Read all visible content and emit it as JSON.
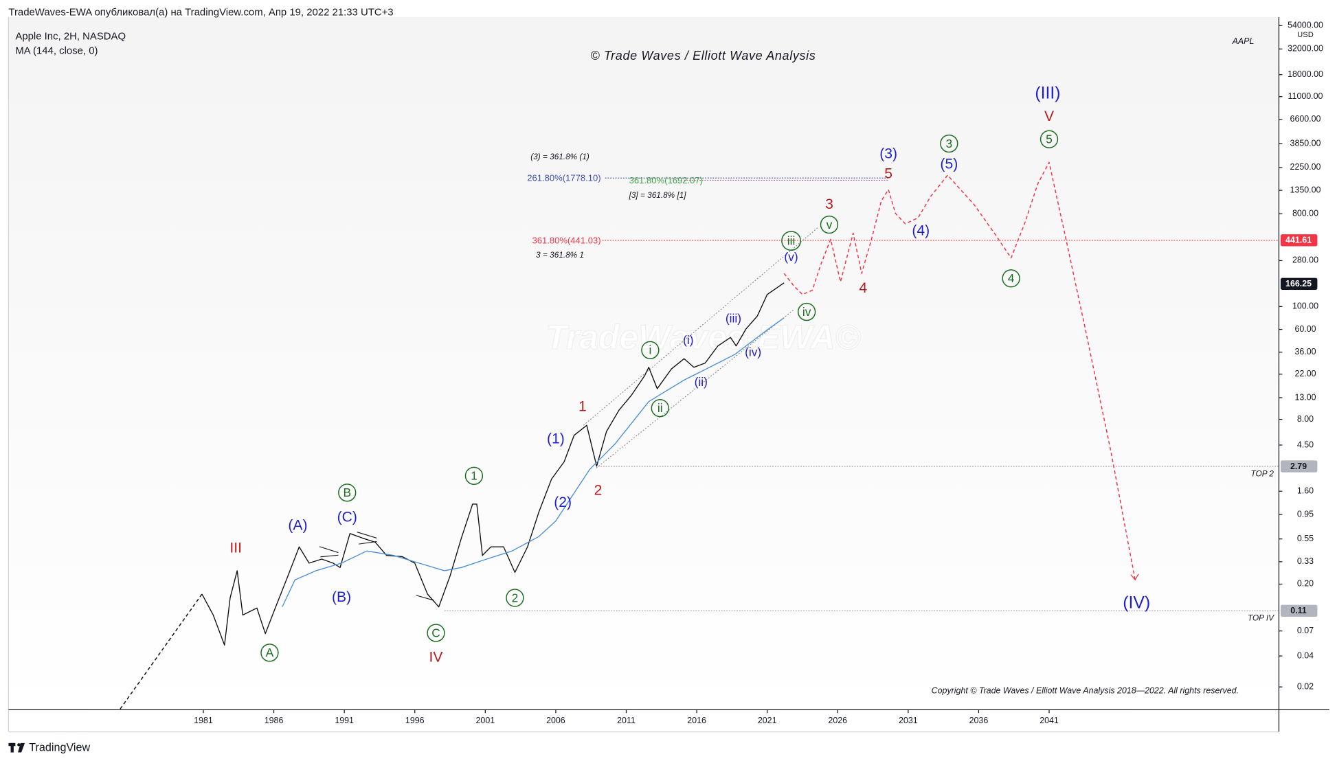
{
  "header": {
    "publisher": "TradeWaves-EWA опубликовал(а) на TradingView.com, Апр 19, 2022 21:33 UTC+3"
  },
  "footer": {
    "brand": "TradingView"
  },
  "chart_data": {
    "type": "line",
    "title": "© Trade Waves / Elliott Wave Analysis",
    "symbol": "AAPL",
    "currency": "USD",
    "watermark": "TradeWaves-EWA©",
    "copyright": "Copyright © Trade Waves / Elliott Wave Analysis 2018—2022. All rights reserved.",
    "log_scale": true,
    "grid": false,
    "legend": "top-left",
    "xlim": [
      1967.18,
      2057.3
    ],
    "xticks": [
      1981,
      1986,
      1991,
      1996,
      2001,
      2006,
      2011,
      2016,
      2021,
      2026,
      2031,
      2036,
      2041
    ],
    "ylim": [
      0.012,
      65330
    ],
    "yticks": [
      {
        "value": 54000,
        "label": "54000.00"
      },
      {
        "value": 32000,
        "label": "32000.00"
      },
      {
        "value": 18000,
        "label": "18000.00"
      },
      {
        "value": 11000,
        "label": "11000.00"
      },
      {
        "value": 6600,
        "label": "6600.00"
      },
      {
        "value": 3850,
        "label": "3850.00"
      },
      {
        "value": 2250,
        "label": "2250.00"
      },
      {
        "value": 1350,
        "label": "1350.00"
      },
      {
        "value": 800,
        "label": "800.00"
      },
      {
        "value": 280,
        "label": "280.00"
      },
      {
        "value": 100,
        "label": "100.00"
      },
      {
        "value": 60,
        "label": "60.00"
      },
      {
        "value": 36,
        "label": "36.00"
      },
      {
        "value": 22,
        "label": "22.00"
      },
      {
        "value": 13,
        "label": "13.00"
      },
      {
        "value": 8,
        "label": "8.00"
      },
      {
        "value": 4.5,
        "label": "4.50"
      },
      {
        "value": 1.6,
        "label": "1.60"
      },
      {
        "value": 0.95,
        "label": "0.95"
      },
      {
        "value": 0.55,
        "label": "0.55"
      },
      {
        "value": 0.33,
        "label": "0.33"
      },
      {
        "value": 0.2,
        "label": "0.20"
      },
      {
        "value": 0.07,
        "label": "0.07"
      },
      {
        "value": 0.04,
        "label": "0.04"
      },
      {
        "value": 0.02,
        "label": "0.02"
      }
    ],
    "series": [
      {
        "name": "Apple Inc, 2H, NASDAQ",
        "color": "#111111",
        "dash": false,
        "x": [
          1980.9,
          1981.7,
          1982.5,
          1982.9,
          1983.4,
          1983.8,
          1984.8,
          1985.4,
          1986.1,
          1987.0,
          1987.8,
          1988.5,
          1989.4,
          1990.2,
          1990.7,
          1991.4,
          1992.3,
          1993.2,
          1994.0,
          1995.1,
          1996.0,
          1996.9,
          1997.7,
          1998.5,
          1999.3,
          2000.1,
          2000.4,
          2000.8,
          2001.4,
          2002.3,
          2003.1,
          2004.0,
          2004.8,
          2005.7,
          2006.6,
          2007.3,
          2008.2,
          2008.9,
          2009.6,
          2010.5,
          2011.4,
          2012.3,
          2012.6,
          2013.2,
          2014.2,
          2015.1,
          2015.8,
          2016.6,
          2017.5,
          2018.4,
          2018.8,
          2019.5,
          2020.3,
          2021.0,
          2022.2
        ],
        "values": [
          0.16,
          0.1,
          0.051,
          0.147,
          0.27,
          0.1,
          0.117,
          0.066,
          0.117,
          0.24,
          0.46,
          0.32,
          0.35,
          0.32,
          0.29,
          0.62,
          0.56,
          0.51,
          0.38,
          0.37,
          0.32,
          0.16,
          0.12,
          0.24,
          0.56,
          1.2,
          1.2,
          0.38,
          0.46,
          0.46,
          0.26,
          0.46,
          1.0,
          2.1,
          3.1,
          5.6,
          7.0,
          2.8,
          6.1,
          9.9,
          13.9,
          21.2,
          25.7,
          15.9,
          24.7,
          31.1,
          25.7,
          28.2,
          41.4,
          50.1,
          41.4,
          60.7,
          80.9,
          131,
          170
        ]
      },
      {
        "name": "MA (144, close, 0)",
        "color": "#4a90d9",
        "dash": false,
        "x": [
          1986.6,
          1987.5,
          1989.0,
          1990.8,
          1992.6,
          1994.5,
          1996.3,
          1998.1,
          1999.3,
          2001.1,
          2002.9,
          2004.8,
          2006.0,
          2007.2,
          2008.4,
          2010.2,
          2011.4,
          2012.6,
          2013.8,
          2015.1,
          2016.3,
          2017.5,
          2018.7,
          2019.9,
          2021.1,
          2022.2
        ],
        "values": [
          0.12,
          0.22,
          0.27,
          0.32,
          0.42,
          0.38,
          0.32,
          0.27,
          0.29,
          0.35,
          0.42,
          0.58,
          0.82,
          1.46,
          2.6,
          4.6,
          7.4,
          11.9,
          15.0,
          19.3,
          23.3,
          28.2,
          34.2,
          45.6,
          60.7,
          77.8
        ]
      },
      {
        "color": "#f23645",
        "dash": true,
        "x": [
          2022.2,
          2022.9,
          2023.5,
          2024.2,
          2024.8,
          2025.5,
          2026.2,
          2027.1,
          2027.7,
          2028.4,
          2029.1,
          2029.6,
          2030.1,
          2030.8,
          2031.7,
          2032.6,
          2033.8,
          2035.7,
          2037.2,
          2038.3,
          2039.3,
          2040.2,
          2041.0,
          2042.0,
          2043.5,
          2045.4,
          2047.1
        ],
        "values": [
          210,
          158,
          131,
          144,
          255,
          452,
          174,
          518,
          210,
          452,
          1069,
          1371,
          804,
          638,
          729,
          1178,
          1897,
          973,
          498,
          297,
          664,
          1567,
          2529,
          603,
          66.8,
          3.8,
          0.22
        ]
      },
      {
        "color": "#111111",
        "dash": true,
        "x": [
          1975.1,
          1980.9
        ],
        "values": [
          0.0122,
          0.16
        ]
      }
    ],
    "price_labels": [
      {
        "value": 441.61,
        "color": "#f23645",
        "text_color": "#ffffff"
      },
      {
        "value": 166.25,
        "color": "#131722",
        "text_color": "#ffffff"
      },
      {
        "value": 2.79,
        "color": "#b2b5be",
        "text_color": "#131722"
      },
      {
        "value": 0.11,
        "color": "#b2b5be",
        "text_color": "#131722"
      }
    ],
    "levels": [
      {
        "value": 441.03,
        "from": 2009.3,
        "color": "#f23645"
      },
      {
        "value": 1778.1,
        "from": 2009.5,
        "to": 2029.6,
        "color": "#3f51b5"
      },
      {
        "value": 1692.07,
        "from": 2015.1,
        "to": 2029.6,
        "color": "#c06090"
      },
      {
        "value": 2.79,
        "from": 2009.0,
        "color": "#9e9e9e",
        "label": "TOP 2"
      },
      {
        "value": 0.11,
        "from": 1998.1,
        "color": "#9e9e9e",
        "label": "TOP IV"
      }
    ],
    "annotations": [
      {
        "text": "III",
        "x": 1983.3,
        "y": 0.45,
        "color": "#b71c1c",
        "style": "wave"
      },
      {
        "text": "IV",
        "x": 1997.5,
        "y": 0.039,
        "color": "#b71c1c",
        "style": "wave"
      },
      {
        "text": "V",
        "x": 2041.0,
        "y": 7100,
        "color": "#b71c1c",
        "style": "wave"
      },
      {
        "text": "1",
        "x": 2007.9,
        "y": 10.7,
        "color": "#b71c1c",
        "style": "wave"
      },
      {
        "text": "2",
        "x": 2009.0,
        "y": 1.64,
        "color": "#b71c1c",
        "style": "wave"
      },
      {
        "text": "3",
        "x": 2025.4,
        "y": 990,
        "color": "#b71c1c",
        "style": "wave"
      },
      {
        "text": "4",
        "x": 2027.8,
        "y": 152,
        "color": "#b71c1c",
        "style": "wave"
      },
      {
        "text": "5",
        "x": 2029.6,
        "y": 1970,
        "color": "#b71c1c",
        "style": "wave"
      },
      {
        "text": "(A)",
        "x": 1987.7,
        "y": 0.75,
        "color": "#1f1fd1",
        "style": "wave"
      },
      {
        "text": "(B)",
        "x": 1990.8,
        "y": 0.15,
        "color": "#1f1fd1",
        "style": "wave"
      },
      {
        "text": "(C)",
        "x": 1991.2,
        "y": 0.9,
        "color": "#1f1fd1",
        "style": "wave"
      },
      {
        "text": "(1)",
        "x": 2006.0,
        "y": 5.2,
        "color": "#1f1fd1",
        "style": "wave"
      },
      {
        "text": "(2)",
        "x": 2006.5,
        "y": 1.25,
        "color": "#1f1fd1",
        "style": "wave"
      },
      {
        "text": "(3)",
        "x": 2029.6,
        "y": 3060,
        "color": "#1f1fd1",
        "style": "wave"
      },
      {
        "text": "(4)",
        "x": 2031.9,
        "y": 547,
        "color": "#1f1fd1",
        "style": "wave"
      },
      {
        "text": "(5)",
        "x": 2033.9,
        "y": 2430,
        "color": "#1f1fd1",
        "style": "wave"
      },
      {
        "text": "(III)",
        "x": 2040.9,
        "y": 11900,
        "color": "#1f1fd1",
        "style": "wave-large"
      },
      {
        "text": "(IV)",
        "x": 2047.2,
        "y": 0.131,
        "color": "#1f1fd1",
        "style": "wave-large"
      },
      {
        "text": "(i)",
        "x": 2015.4,
        "y": 47.3,
        "color": "#1f1fd1",
        "style": "wave-small"
      },
      {
        "text": "(ii)",
        "x": 2016.3,
        "y": 18.5,
        "color": "#1f1fd1",
        "style": "wave-small"
      },
      {
        "text": "(iii)",
        "x": 2018.6,
        "y": 76.4,
        "color": "#1f1fd1",
        "style": "wave-small"
      },
      {
        "text": "(iv)",
        "x": 2020.0,
        "y": 36.2,
        "color": "#1f1fd1",
        "style": "wave-small"
      },
      {
        "text": "(v)",
        "x": 2022.7,
        "y": 303,
        "color": "#1f1fd1",
        "style": "wave-small"
      },
      {
        "text": "A",
        "x": 1985.7,
        "y": 0.043,
        "color": "#1b6e20",
        "style": "circled"
      },
      {
        "text": "B",
        "x": 1991.2,
        "y": 1.55,
        "color": "#1b6e20",
        "style": "circled"
      },
      {
        "text": "C",
        "x": 1997.5,
        "y": 0.067,
        "color": "#1b6e20",
        "style": "circled"
      },
      {
        "text": "1",
        "x": 2000.2,
        "y": 2.26,
        "color": "#1b6e20",
        "style": "circled"
      },
      {
        "text": "2",
        "x": 2003.1,
        "y": 0.147,
        "color": "#1b6e20",
        "style": "circled"
      },
      {
        "text": "3",
        "x": 2033.9,
        "y": 3850,
        "color": "#1b6e20",
        "style": "circled"
      },
      {
        "text": "4",
        "x": 2038.3,
        "y": 188,
        "color": "#1b6e20",
        "style": "circled"
      },
      {
        "text": "5",
        "x": 2041.0,
        "y": 4240,
        "color": "#1b6e20",
        "style": "circled"
      },
      {
        "text": "i",
        "x": 2012.7,
        "y": 37.7,
        "color": "#1b6e20",
        "style": "circled"
      },
      {
        "text": "ii",
        "x": 2013.4,
        "y": 10.3,
        "color": "#1b6e20",
        "style": "circled"
      },
      {
        "text": "iii",
        "x": 2022.7,
        "y": 436,
        "color": "#1b6e20",
        "style": "circled"
      },
      {
        "text": "iv",
        "x": 2023.8,
        "y": 88.9,
        "color": "#1b6e20",
        "style": "circled"
      },
      {
        "text": "v",
        "x": 2025.4,
        "y": 627,
        "color": "#1b6e20",
        "style": "circled"
      },
      {
        "text": "(3) = 361.8% (1)",
        "x": 2006.3,
        "y": 2890,
        "color": "#131722",
        "style": "note",
        "align": "middle"
      },
      {
        "text": "261.80%(1778.10)",
        "x": 2009.2,
        "y": 1790,
        "color": "#3f51b5",
        "style": "note-plain",
        "align": "end"
      },
      {
        "text": "361.80%(1692.07)",
        "x": 2011.2,
        "y": 1690,
        "color": "#43a047",
        "style": "note-plain",
        "align": "start"
      },
      {
        "text": "[3] = 361.8% [1]",
        "x": 2011.2,
        "y": 1220,
        "color": "#131722",
        "style": "note",
        "align": "start"
      },
      {
        "text": "361.80%(441.03)",
        "x": 2009.2,
        "y": 441,
        "color": "#f23645",
        "style": "note-plain",
        "align": "end"
      },
      {
        "text": "3 = 361.8% 1",
        "x": 2006.3,
        "y": 321,
        "color": "#131722",
        "style": "note",
        "align": "middle"
      }
    ]
  }
}
